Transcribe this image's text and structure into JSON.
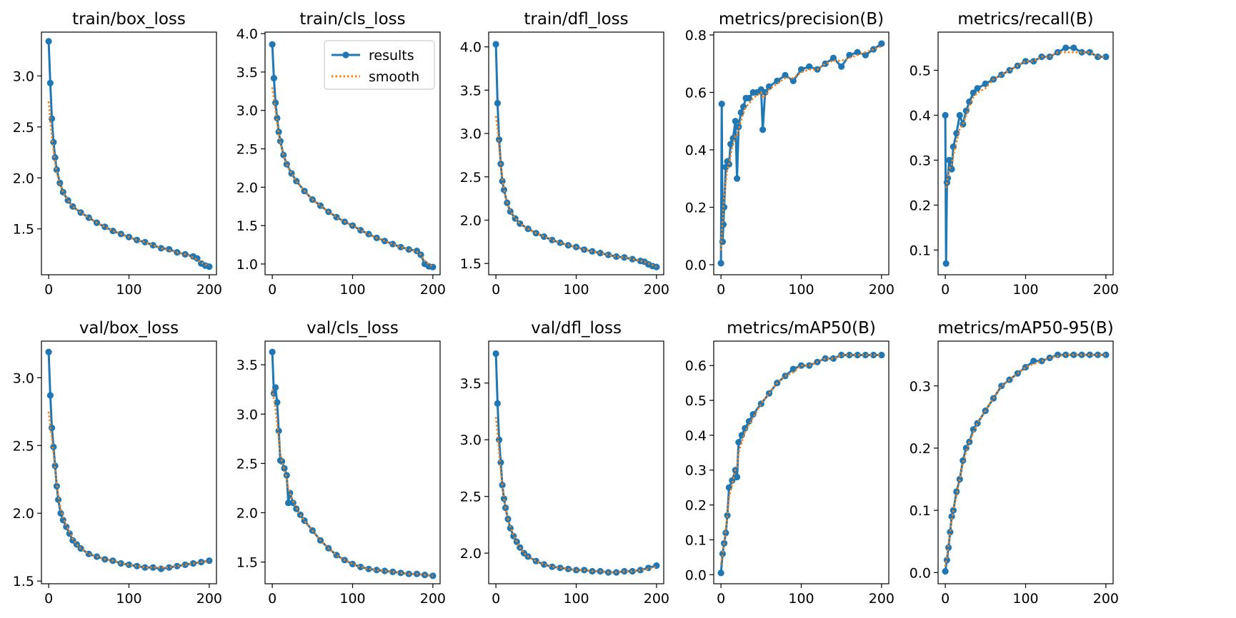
{
  "figure": {
    "colors": {
      "results": "#1f77b4",
      "smooth": "#ff7f0e",
      "axes": "#000000",
      "background": "#ffffff"
    },
    "legend": {
      "entries": [
        "results",
        "smooth"
      ],
      "panel": "train/cls_loss",
      "placement": "upper-right"
    }
  },
  "chart_data": [
    {
      "type": "line",
      "title": "train/box_loss",
      "series_names": [
        "results",
        "smooth"
      ],
      "xlim": [
        -9,
        209
      ],
      "ylim": [
        1.05,
        3.43
      ],
      "xticks": [
        0,
        100,
        200
      ],
      "yticks": [
        1.5,
        2.0,
        2.5,
        3.0
      ],
      "ytick_labels": [
        "1.5",
        "2.0",
        "2.5",
        "3.0"
      ],
      "x": [
        0,
        2,
        4,
        6,
        8,
        10,
        14,
        18,
        24,
        30,
        40,
        50,
        60,
        70,
        80,
        90,
        100,
        110,
        120,
        130,
        140,
        150,
        160,
        170,
        180,
        185,
        190,
        195,
        200
      ],
      "values": [
        3.34,
        2.93,
        2.58,
        2.35,
        2.2,
        2.08,
        1.95,
        1.86,
        1.78,
        1.72,
        1.66,
        1.61,
        1.56,
        1.52,
        1.48,
        1.45,
        1.42,
        1.39,
        1.37,
        1.34,
        1.31,
        1.3,
        1.27,
        1.25,
        1.23,
        1.21,
        1.16,
        1.14,
        1.13
      ],
      "smooth": [
        2.75,
        2.55,
        2.4,
        2.27,
        2.15,
        2.05,
        1.94,
        1.86,
        1.78,
        1.72,
        1.66,
        1.61,
        1.56,
        1.52,
        1.48,
        1.45,
        1.42,
        1.39,
        1.37,
        1.34,
        1.31,
        1.29,
        1.27,
        1.25,
        1.22,
        1.2,
        1.17,
        1.15,
        1.14
      ]
    },
    {
      "type": "line",
      "title": "train/cls_loss",
      "series_names": [
        "results",
        "smooth"
      ],
      "xlim": [
        -9,
        209
      ],
      "ylim": [
        0.86,
        4.02
      ],
      "xticks": [
        0,
        100,
        200
      ],
      "yticks": [
        1.0,
        1.5,
        2.0,
        2.5,
        3.0,
        3.5,
        4.0
      ],
      "ytick_labels": [
        "1.0",
        "1.5",
        "2.0",
        "2.5",
        "3.0",
        "3.5",
        "4.0"
      ],
      "x": [
        0,
        2,
        4,
        6,
        8,
        10,
        14,
        18,
        24,
        30,
        40,
        50,
        60,
        70,
        80,
        90,
        100,
        110,
        120,
        130,
        140,
        150,
        160,
        170,
        180,
        185,
        190,
        195,
        200
      ],
      "values": [
        3.86,
        3.42,
        3.1,
        2.9,
        2.72,
        2.6,
        2.42,
        2.3,
        2.18,
        2.08,
        1.95,
        1.84,
        1.76,
        1.68,
        1.61,
        1.55,
        1.5,
        1.44,
        1.39,
        1.34,
        1.3,
        1.26,
        1.22,
        1.19,
        1.17,
        1.12,
        1.0,
        0.97,
        0.96
      ],
      "smooth": [
        3.3,
        3.15,
        3.0,
        2.85,
        2.7,
        2.58,
        2.42,
        2.3,
        2.18,
        2.08,
        1.95,
        1.84,
        1.76,
        1.68,
        1.61,
        1.55,
        1.5,
        1.44,
        1.39,
        1.34,
        1.3,
        1.26,
        1.22,
        1.19,
        1.16,
        1.12,
        1.04,
        0.99,
        0.97
      ]
    },
    {
      "type": "line",
      "title": "train/dfl_loss",
      "series_names": [
        "results",
        "smooth"
      ],
      "xlim": [
        -9,
        209
      ],
      "ylim": [
        1.37,
        4.17
      ],
      "xticks": [
        0,
        100,
        200
      ],
      "yticks": [
        1.5,
        2.0,
        2.5,
        3.0,
        3.5,
        4.0
      ],
      "ytick_labels": [
        "1.5",
        "2.0",
        "2.5",
        "3.0",
        "3.5",
        "4.0"
      ],
      "x": [
        0,
        2,
        4,
        6,
        8,
        10,
        14,
        18,
        24,
        30,
        40,
        50,
        60,
        70,
        80,
        90,
        100,
        110,
        120,
        130,
        140,
        150,
        160,
        170,
        180,
        185,
        190,
        195,
        200
      ],
      "values": [
        4.03,
        3.35,
        2.93,
        2.65,
        2.45,
        2.35,
        2.2,
        2.1,
        2.02,
        1.96,
        1.9,
        1.85,
        1.81,
        1.77,
        1.74,
        1.71,
        1.69,
        1.66,
        1.64,
        1.62,
        1.6,
        1.58,
        1.57,
        1.55,
        1.53,
        1.52,
        1.49,
        1.47,
        1.46
      ],
      "smooth": [
        3.2,
        3.05,
        2.85,
        2.65,
        2.48,
        2.36,
        2.2,
        2.1,
        2.02,
        1.96,
        1.9,
        1.85,
        1.81,
        1.77,
        1.74,
        1.71,
        1.69,
        1.66,
        1.64,
        1.62,
        1.6,
        1.58,
        1.57,
        1.55,
        1.53,
        1.52,
        1.5,
        1.48,
        1.46
      ]
    },
    {
      "type": "line",
      "title": "metrics/precision(B)",
      "series_names": [
        "results",
        "smooth"
      ],
      "xlim": [
        -9,
        209
      ],
      "ylim": [
        -0.035,
        0.81
      ],
      "xticks": [
        0,
        100,
        200
      ],
      "yticks": [
        0.0,
        0.2,
        0.4,
        0.6,
        0.8
      ],
      "ytick_labels": [
        "0.0",
        "0.2",
        "0.4",
        "0.6",
        "0.8"
      ],
      "x": [
        0,
        1,
        2,
        3,
        4,
        6,
        8,
        10,
        12,
        15,
        18,
        20,
        22,
        25,
        28,
        31,
        35,
        40,
        45,
        50,
        52,
        55,
        60,
        70,
        80,
        90,
        100,
        110,
        120,
        130,
        140,
        150,
        160,
        170,
        180,
        190,
        200
      ],
      "values": [
        0.005,
        0.56,
        0.08,
        0.14,
        0.2,
        0.34,
        0.36,
        0.35,
        0.42,
        0.44,
        0.5,
        0.3,
        0.48,
        0.53,
        0.55,
        0.58,
        0.58,
        0.6,
        0.6,
        0.61,
        0.47,
        0.6,
        0.62,
        0.64,
        0.66,
        0.64,
        0.68,
        0.69,
        0.68,
        0.7,
        0.72,
        0.69,
        0.73,
        0.74,
        0.73,
        0.75,
        0.77
      ],
      "smooth": [
        0.05,
        0.1,
        0.15,
        0.2,
        0.24,
        0.29,
        0.33,
        0.35,
        0.38,
        0.42,
        0.45,
        0.45,
        0.47,
        0.5,
        0.53,
        0.55,
        0.56,
        0.58,
        0.59,
        0.6,
        0.58,
        0.59,
        0.61,
        0.63,
        0.65,
        0.65,
        0.67,
        0.68,
        0.68,
        0.7,
        0.71,
        0.71,
        0.72,
        0.73,
        0.74,
        0.75,
        0.76
      ]
    },
    {
      "type": "line",
      "title": "metrics/recall(B)",
      "series_names": [
        "results",
        "smooth"
      ],
      "xlim": [
        -9,
        209
      ],
      "ylim": [
        0.045,
        0.585
      ],
      "xticks": [
        0,
        100,
        200
      ],
      "yticks": [
        0.1,
        0.2,
        0.3,
        0.4,
        0.5
      ],
      "ytick_labels": [
        "0.1",
        "0.2",
        "0.3",
        "0.4",
        "0.5"
      ],
      "x": [
        0,
        1,
        2,
        3,
        5,
        8,
        10,
        14,
        18,
        22,
        26,
        30,
        35,
        40,
        50,
        60,
        70,
        80,
        90,
        100,
        110,
        120,
        130,
        140,
        150,
        160,
        170,
        180,
        190,
        200
      ],
      "values": [
        0.4,
        0.07,
        0.25,
        0.26,
        0.3,
        0.28,
        0.33,
        0.36,
        0.4,
        0.38,
        0.41,
        0.43,
        0.45,
        0.46,
        0.47,
        0.48,
        0.49,
        0.5,
        0.51,
        0.52,
        0.52,
        0.53,
        0.53,
        0.54,
        0.55,
        0.55,
        0.54,
        0.54,
        0.53,
        0.53
      ],
      "smooth": [
        0.24,
        0.24,
        0.25,
        0.26,
        0.28,
        0.29,
        0.31,
        0.34,
        0.37,
        0.38,
        0.4,
        0.42,
        0.44,
        0.45,
        0.46,
        0.48,
        0.49,
        0.5,
        0.51,
        0.52,
        0.52,
        0.53,
        0.53,
        0.54,
        0.54,
        0.54,
        0.54,
        0.54,
        0.53,
        0.53
      ]
    },
    {
      "type": "line",
      "title": "val/box_loss",
      "series_names": [
        "results",
        "smooth"
      ],
      "xlim": [
        -9,
        209
      ],
      "ylim": [
        1.48,
        3.27
      ],
      "xticks": [
        0,
        100,
        200
      ],
      "yticks": [
        1.5,
        2.0,
        2.5,
        3.0
      ],
      "ytick_labels": [
        "1.5",
        "2.0",
        "2.5",
        "3.0"
      ],
      "x": [
        0,
        2,
        4,
        6,
        8,
        10,
        12,
        15,
        18,
        22,
        26,
        30,
        35,
        40,
        50,
        60,
        70,
        80,
        90,
        100,
        110,
        120,
        130,
        140,
        150,
        160,
        170,
        180,
        190,
        200
      ],
      "values": [
        3.19,
        2.87,
        2.63,
        2.49,
        2.35,
        2.2,
        2.1,
        2.0,
        1.95,
        1.9,
        1.85,
        1.8,
        1.77,
        1.74,
        1.7,
        1.68,
        1.66,
        1.65,
        1.63,
        1.62,
        1.61,
        1.6,
        1.6,
        1.59,
        1.6,
        1.61,
        1.62,
        1.63,
        1.64,
        1.65
      ],
      "smooth": [
        2.75,
        2.65,
        2.55,
        2.44,
        2.33,
        2.22,
        2.13,
        2.03,
        1.97,
        1.91,
        1.86,
        1.81,
        1.77,
        1.74,
        1.7,
        1.68,
        1.66,
        1.65,
        1.63,
        1.62,
        1.61,
        1.6,
        1.6,
        1.6,
        1.6,
        1.61,
        1.62,
        1.63,
        1.64,
        1.65
      ]
    },
    {
      "type": "line",
      "title": "val/cls_loss",
      "series_names": [
        "results",
        "smooth"
      ],
      "xlim": [
        -9,
        209
      ],
      "ylim": [
        1.28,
        3.74
      ],
      "xticks": [
        0,
        100,
        200
      ],
      "yticks": [
        1.5,
        2.0,
        2.5,
        3.0,
        3.5
      ],
      "ytick_labels": [
        "1.5",
        "2.0",
        "2.5",
        "3.0",
        "3.5"
      ],
      "x": [
        0,
        2,
        4,
        6,
        8,
        10,
        12,
        15,
        18,
        20,
        22,
        26,
        30,
        35,
        40,
        50,
        60,
        70,
        80,
        90,
        100,
        110,
        120,
        130,
        140,
        150,
        160,
        170,
        180,
        190,
        200
      ],
      "values": [
        3.63,
        3.21,
        3.27,
        3.12,
        2.83,
        2.53,
        2.52,
        2.45,
        2.38,
        2.1,
        2.2,
        2.1,
        2.04,
        1.98,
        1.92,
        1.82,
        1.72,
        1.64,
        1.57,
        1.52,
        1.48,
        1.45,
        1.43,
        1.42,
        1.41,
        1.4,
        1.39,
        1.38,
        1.38,
        1.37,
        1.36
      ],
      "smooth": [
        3.25,
        3.15,
        3.05,
        2.9,
        2.75,
        2.6,
        2.52,
        2.44,
        2.35,
        2.24,
        2.2,
        2.12,
        2.05,
        1.98,
        1.92,
        1.82,
        1.72,
        1.64,
        1.57,
        1.52,
        1.48,
        1.45,
        1.43,
        1.42,
        1.41,
        1.4,
        1.39,
        1.38,
        1.38,
        1.37,
        1.36
      ]
    },
    {
      "type": "line",
      "title": "val/dfl_loss",
      "series_names": [
        "results",
        "smooth"
      ],
      "xlim": [
        -9,
        209
      ],
      "ylim": [
        1.73,
        3.87
      ],
      "xticks": [
        0,
        100,
        200
      ],
      "yticks": [
        2.0,
        2.5,
        3.0,
        3.5
      ],
      "ytick_labels": [
        "2.0",
        "2.5",
        "3.0",
        "3.5"
      ],
      "x": [
        0,
        2,
        4,
        6,
        8,
        10,
        12,
        15,
        18,
        22,
        26,
        30,
        35,
        40,
        50,
        60,
        70,
        80,
        90,
        100,
        110,
        120,
        130,
        140,
        150,
        160,
        170,
        180,
        190,
        200
      ],
      "values": [
        3.76,
        3.32,
        3.0,
        2.8,
        2.6,
        2.48,
        2.4,
        2.3,
        2.22,
        2.15,
        2.1,
        2.05,
        2.0,
        1.97,
        1.93,
        1.9,
        1.88,
        1.87,
        1.86,
        1.85,
        1.85,
        1.84,
        1.84,
        1.83,
        1.83,
        1.84,
        1.84,
        1.85,
        1.87,
        1.89
      ],
      "smooth": [
        3.2,
        3.05,
        2.88,
        2.73,
        2.6,
        2.48,
        2.4,
        2.3,
        2.23,
        2.16,
        2.1,
        2.05,
        2.0,
        1.97,
        1.93,
        1.9,
        1.88,
        1.87,
        1.86,
        1.85,
        1.85,
        1.84,
        1.84,
        1.83,
        1.83,
        1.84,
        1.84,
        1.85,
        1.86,
        1.88
      ]
    },
    {
      "type": "line",
      "title": "metrics/mAP50(B)",
      "series_names": [
        "results",
        "smooth"
      ],
      "xlim": [
        -9,
        209
      ],
      "ylim": [
        -0.026,
        0.67
      ],
      "xticks": [
        0,
        100,
        200
      ],
      "yticks": [
        0.0,
        0.1,
        0.2,
        0.3,
        0.4,
        0.5,
        0.6
      ],
      "ytick_labels": [
        "0.0",
        "0.1",
        "0.2",
        "0.3",
        "0.4",
        "0.5",
        "0.6"
      ],
      "x": [
        0,
        2,
        4,
        6,
        8,
        10,
        14,
        18,
        20,
        22,
        26,
        30,
        35,
        40,
        50,
        60,
        70,
        80,
        90,
        100,
        110,
        120,
        130,
        140,
        150,
        160,
        170,
        180,
        190,
        200
      ],
      "values": [
        0.005,
        0.06,
        0.09,
        0.12,
        0.17,
        0.25,
        0.27,
        0.3,
        0.28,
        0.38,
        0.4,
        0.42,
        0.44,
        0.46,
        0.49,
        0.52,
        0.55,
        0.57,
        0.59,
        0.6,
        0.6,
        0.61,
        0.62,
        0.62,
        0.63,
        0.63,
        0.63,
        0.63,
        0.63,
        0.63
      ],
      "smooth": [
        0.03,
        0.06,
        0.09,
        0.13,
        0.17,
        0.22,
        0.26,
        0.3,
        0.31,
        0.35,
        0.38,
        0.41,
        0.43,
        0.45,
        0.49,
        0.52,
        0.55,
        0.57,
        0.58,
        0.6,
        0.6,
        0.61,
        0.62,
        0.62,
        0.63,
        0.63,
        0.63,
        0.63,
        0.63,
        0.63
      ]
    },
    {
      "type": "line",
      "title": "metrics/mAP50-95(B)",
      "series_names": [
        "results",
        "smooth"
      ],
      "xlim": [
        -9,
        209
      ],
      "ylim": [
        -0.018,
        0.372
      ],
      "xticks": [
        0,
        100,
        200
      ],
      "yticks": [
        0.0,
        0.1,
        0.2,
        0.3
      ],
      "ytick_labels": [
        "0.0",
        "0.1",
        "0.2",
        "0.3"
      ],
      "x": [
        0,
        2,
        4,
        6,
        8,
        10,
        14,
        18,
        22,
        26,
        30,
        35,
        40,
        50,
        60,
        70,
        80,
        90,
        100,
        110,
        120,
        130,
        140,
        150,
        160,
        170,
        180,
        190,
        200
      ],
      "values": [
        0.002,
        0.02,
        0.04,
        0.065,
        0.09,
        0.1,
        0.13,
        0.15,
        0.18,
        0.2,
        0.21,
        0.23,
        0.24,
        0.26,
        0.28,
        0.3,
        0.31,
        0.32,
        0.33,
        0.34,
        0.34,
        0.345,
        0.35,
        0.35,
        0.35,
        0.35,
        0.35,
        0.35,
        0.35
      ],
      "smooth": [
        0.01,
        0.025,
        0.045,
        0.065,
        0.085,
        0.1,
        0.125,
        0.15,
        0.175,
        0.195,
        0.21,
        0.225,
        0.24,
        0.26,
        0.28,
        0.3,
        0.31,
        0.32,
        0.33,
        0.335,
        0.34,
        0.345,
        0.348,
        0.35,
        0.35,
        0.35,
        0.35,
        0.35,
        0.35
      ]
    }
  ]
}
